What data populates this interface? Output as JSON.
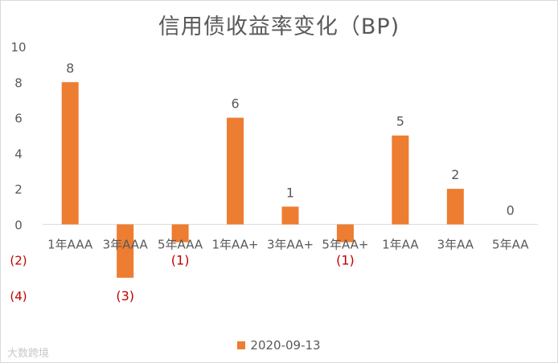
{
  "chart_data": {
    "type": "bar",
    "title": "信用债收益率变化（BP)",
    "categories": [
      "1年AAA",
      "3年AAA",
      "5年AAA",
      "1年AA+",
      "3年AA+",
      "5年AA+",
      "1年AA",
      "3年AA",
      "5年AA"
    ],
    "series": [
      {
        "name": "2020-09-13",
        "values": [
          8,
          -3,
          -1,
          6,
          1,
          -1,
          5,
          2,
          0
        ],
        "data_labels": [
          "8",
          "(3)",
          "(1)",
          "6",
          "1",
          "(1)",
          "5",
          "2",
          "0"
        ]
      }
    ],
    "y_ticks": [
      10,
      8,
      6,
      4,
      2,
      0,
      -2,
      -4
    ],
    "y_tick_labels": [
      "10",
      "8",
      "6",
      "4",
      "2",
      "0",
      "(2)",
      "(4)"
    ],
    "ylim": [
      -4,
      10
    ],
    "grid": false,
    "legend_position": "bottom",
    "colors": {
      "bar": "#ED7D31",
      "text": "#595959",
      "negative_label": "#C00000",
      "axis": "#d9d9d9"
    }
  },
  "watermark": "大数跨境"
}
